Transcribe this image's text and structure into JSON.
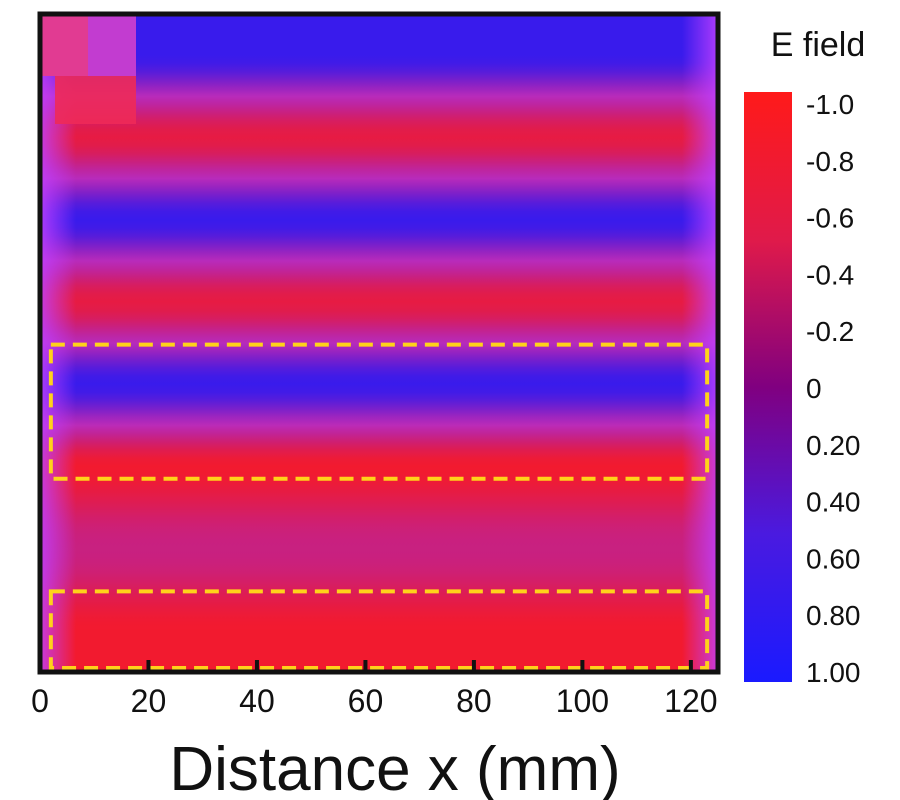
{
  "chart_data": {
    "type": "heatmap",
    "title": "",
    "xlabel": "Distance x (mm)",
    "ylabel": "",
    "xlim": [
      0,
      125
    ],
    "xticks": [
      "0",
      "20",
      "40",
      "60",
      "80",
      "100",
      "120"
    ],
    "xtick_values": [
      0,
      20,
      40,
      60,
      80,
      100,
      120
    ],
    "colorbar": {
      "title": "E field",
      "ticks": [
        "-1.0",
        "-0.8",
        "-0.6",
        "-0.4",
        "-0.2",
        "0",
        "0.20",
        "0.40",
        "0.60",
        "0.80",
        "1.00"
      ],
      "tick_values": [
        -1.0,
        -0.8,
        -0.6,
        -0.4,
        -0.2,
        0,
        0.2,
        0.4,
        0.6,
        0.8,
        1.0
      ],
      "color_low": "#ff1a1a",
      "color_mid": "#800080",
      "color_high": "#1a1aff"
    },
    "field_rows": [
      0.85,
      -0.8,
      0.85,
      -0.8,
      0.85,
      -0.9,
      -0.45,
      -0.9
    ],
    "field_rows_note_free": true,
    "highlight_boxes": [
      {
        "x_range": [
          2,
          123
        ],
        "field_row_range": [
          4,
          5
        ]
      },
      {
        "x_range": [
          2,
          123
        ],
        "field_row_range": [
          7,
          7
        ]
      }
    ],
    "highlight_color": "#ffd21a",
    "plot_border_color": "#111111"
  }
}
